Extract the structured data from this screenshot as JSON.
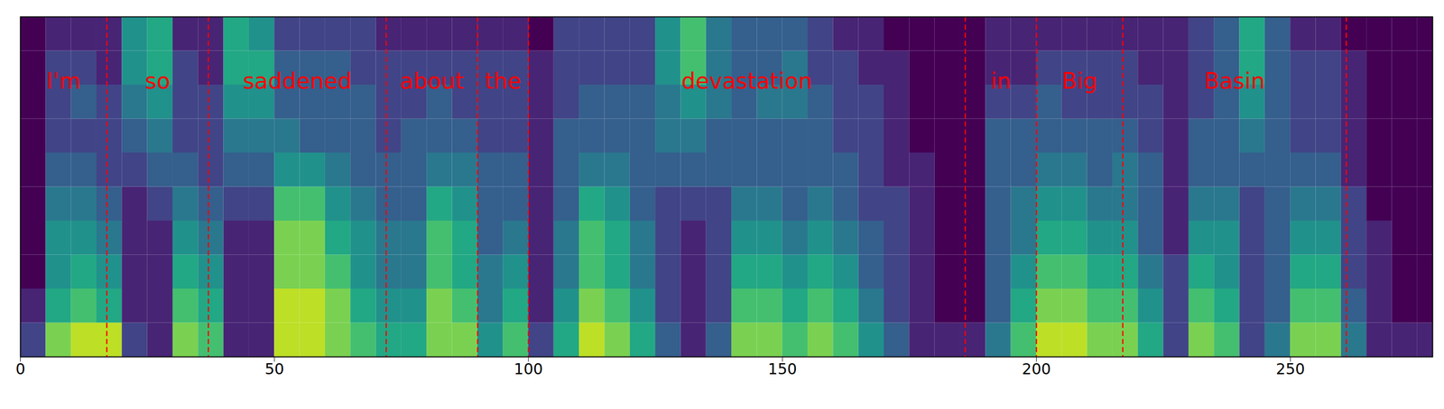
{
  "chart_data": {
    "type": "heatmap",
    "color": "viridis",
    "tick_labels": "x",
    "xlim": [
      0,
      278
    ],
    "xticks": [
      0,
      50,
      100,
      150,
      200,
      250
    ],
    "ylim": [
      0,
      80
    ],
    "color_range": [
      0,
      10
    ],
    "words": [
      {
        "text": "I'm",
        "start": 0,
        "end": 17
      },
      {
        "text": "so",
        "start": 17,
        "end": 37
      },
      {
        "text": "saddened",
        "start": 37,
        "end": 72
      },
      {
        "text": "about",
        "start": 72,
        "end": 90
      },
      {
        "text": "the",
        "start": 90,
        "end": 100
      },
      {
        "text": "devastation",
        "start": 100,
        "end": 186
      },
      {
        "text": "in",
        "start": 186,
        "end": 200
      },
      {
        "text": "Big",
        "start": 200,
        "end": 217
      },
      {
        "text": "Basin",
        "start": 217,
        "end": 261
      }
    ],
    "x_bins": [
      0,
      5,
      10,
      15,
      20,
      25,
      30,
      35,
      40,
      45,
      50,
      55,
      60,
      65,
      70,
      75,
      80,
      85,
      90,
      95,
      100,
      105,
      110,
      115,
      120,
      125,
      130,
      135,
      140,
      145,
      150,
      155,
      160,
      165,
      170,
      175,
      180,
      185,
      190,
      195,
      200,
      205,
      210,
      215,
      220,
      225,
      230,
      235,
      240,
      245,
      250,
      255,
      260,
      265,
      270,
      275,
      278
    ],
    "y_bins": [
      0,
      8,
      16,
      24,
      32,
      40,
      48,
      56,
      64,
      72,
      80
    ],
    "cells": [
      [
        2,
        1,
        0,
        0,
        0,
        0,
        0,
        0,
        0,
        0
      ],
      [
        8,
        6,
        5,
        5,
        4,
        3,
        2,
        2,
        2,
        1
      ],
      [
        9,
        7,
        6,
        5,
        4,
        3,
        2,
        3,
        2,
        1
      ],
      [
        9,
        6,
        5,
        4,
        3,
        2,
        2,
        2,
        1,
        1
      ],
      [
        2,
        1,
        1,
        1,
        1,
        2,
        3,
        4,
        5,
        5
      ],
      [
        1,
        1,
        1,
        1,
        2,
        3,
        4,
        5,
        6,
        6
      ],
      [
        8,
        7,
        6,
        5,
        4,
        3,
        2,
        2,
        2,
        1
      ],
      [
        7,
        6,
        5,
        4,
        3,
        2,
        2,
        2,
        1,
        1
      ],
      [
        1,
        1,
        1,
        1,
        2,
        3,
        4,
        5,
        6,
        6
      ],
      [
        1,
        1,
        1,
        1,
        2,
        3,
        4,
        5,
        6,
        5
      ],
      [
        9,
        9,
        8,
        8,
        7,
        5,
        4,
        3,
        3,
        2
      ],
      [
        9,
        9,
        8,
        8,
        7,
        5,
        3,
        3,
        3,
        2
      ],
      [
        8,
        8,
        7,
        6,
        5,
        4,
        3,
        3,
        3,
        2
      ],
      [
        7,
        6,
        5,
        5,
        4,
        3,
        3,
        3,
        2,
        2
      ],
      [
        6,
        5,
        4,
        4,
        3,
        3,
        2,
        2,
        2,
        1
      ],
      [
        6,
        5,
        4,
        4,
        3,
        3,
        3,
        2,
        2,
        1
      ],
      [
        8,
        8,
        7,
        7,
        6,
        4,
        3,
        3,
        2,
        1
      ],
      [
        8,
        7,
        6,
        6,
        5,
        4,
        3,
        2,
        2,
        1
      ],
      [
        5,
        4,
        4,
        3,
        3,
        3,
        2,
        2,
        2,
        1
      ],
      [
        7,
        6,
        5,
        4,
        3,
        3,
        2,
        2,
        2,
        1
      ],
      [
        2,
        1,
        1,
        1,
        1,
        1,
        1,
        1,
        1,
        0
      ],
      [
        6,
        5,
        4,
        4,
        3,
        3,
        3,
        2,
        2,
        2
      ],
      [
        9,
        8,
        7,
        7,
        6,
        4,
        3,
        3,
        2,
        2
      ],
      [
        8,
        7,
        6,
        6,
        5,
        4,
        3,
        3,
        2,
        2
      ],
      [
        6,
        5,
        4,
        4,
        3,
        3,
        3,
        3,
        2,
        2
      ],
      [
        3,
        2,
        2,
        2,
        2,
        3,
        4,
        4,
        5,
        5
      ],
      [
        1,
        1,
        1,
        1,
        2,
        3,
        4,
        5,
        7,
        7
      ],
      [
        3,
        2,
        2,
        2,
        2,
        3,
        3,
        4,
        4,
        4
      ],
      [
        8,
        7,
        6,
        5,
        4,
        3,
        3,
        3,
        3,
        3
      ],
      [
        8,
        7,
        6,
        5,
        4,
        3,
        3,
        4,
        3,
        3
      ],
      [
        7,
        6,
        5,
        4,
        3,
        3,
        3,
        4,
        4,
        3
      ],
      [
        8,
        7,
        6,
        5,
        4,
        3,
        3,
        3,
        2,
        2
      ],
      [
        7,
        6,
        5,
        4,
        3,
        3,
        2,
        2,
        2,
        1
      ],
      [
        5,
        4,
        3,
        3,
        2,
        2,
        2,
        2,
        1,
        1
      ],
      [
        3,
        2,
        2,
        2,
        2,
        1,
        1,
        1,
        1,
        0
      ],
      [
        1,
        1,
        1,
        1,
        1,
        1,
        0,
        0,
        0,
        0
      ],
      [
        1,
        0,
        0,
        0,
        0,
        0,
        0,
        0,
        0,
        0
      ],
      [
        1,
        0,
        0,
        0,
        0,
        0,
        0,
        0,
        0,
        0
      ],
      [
        4,
        3,
        3,
        3,
        3,
        3,
        3,
        2,
        1,
        1
      ],
      [
        7,
        6,
        5,
        4,
        4,
        3,
        3,
        2,
        1,
        1
      ],
      [
        9,
        8,
        7,
        6,
        5,
        4,
        3,
        3,
        2,
        1
      ],
      [
        9,
        8,
        7,
        6,
        5,
        4,
        3,
        2,
        2,
        1
      ],
      [
        8,
        7,
        6,
        5,
        4,
        3,
        3,
        2,
        2,
        1
      ],
      [
        8,
        7,
        6,
        5,
        4,
        4,
        3,
        2,
        2,
        1
      ],
      [
        6,
        5,
        4,
        3,
        3,
        3,
        2,
        2,
        1,
        1
      ],
      [
        2,
        2,
        2,
        1,
        1,
        1,
        1,
        1,
        1,
        1
      ],
      [
        8,
        7,
        6,
        5,
        4,
        3,
        3,
        2,
        2,
        2
      ],
      [
        7,
        6,
        5,
        5,
        4,
        3,
        3,
        3,
        3,
        3
      ],
      [
        2,
        2,
        2,
        2,
        2,
        3,
        4,
        5,
        6,
        6
      ],
      [
        4,
        3,
        3,
        3,
        3,
        3,
        3,
        3,
        3,
        3
      ],
      [
        8,
        7,
        6,
        5,
        4,
        3,
        2,
        2,
        2,
        1
      ],
      [
        8,
        7,
        6,
        5,
        4,
        3,
        2,
        2,
        2,
        1
      ],
      [
        4,
        3,
        2,
        2,
        2,
        1,
        1,
        1,
        1,
        0
      ],
      [
        1,
        1,
        1,
        1,
        0,
        0,
        0,
        0,
        0,
        0
      ],
      [
        1,
        0,
        0,
        0,
        0,
        0,
        0,
        0,
        0,
        0
      ],
      [
        1,
        0,
        0,
        0,
        0,
        0,
        0,
        0,
        0,
        0
      ]
    ]
  }
}
